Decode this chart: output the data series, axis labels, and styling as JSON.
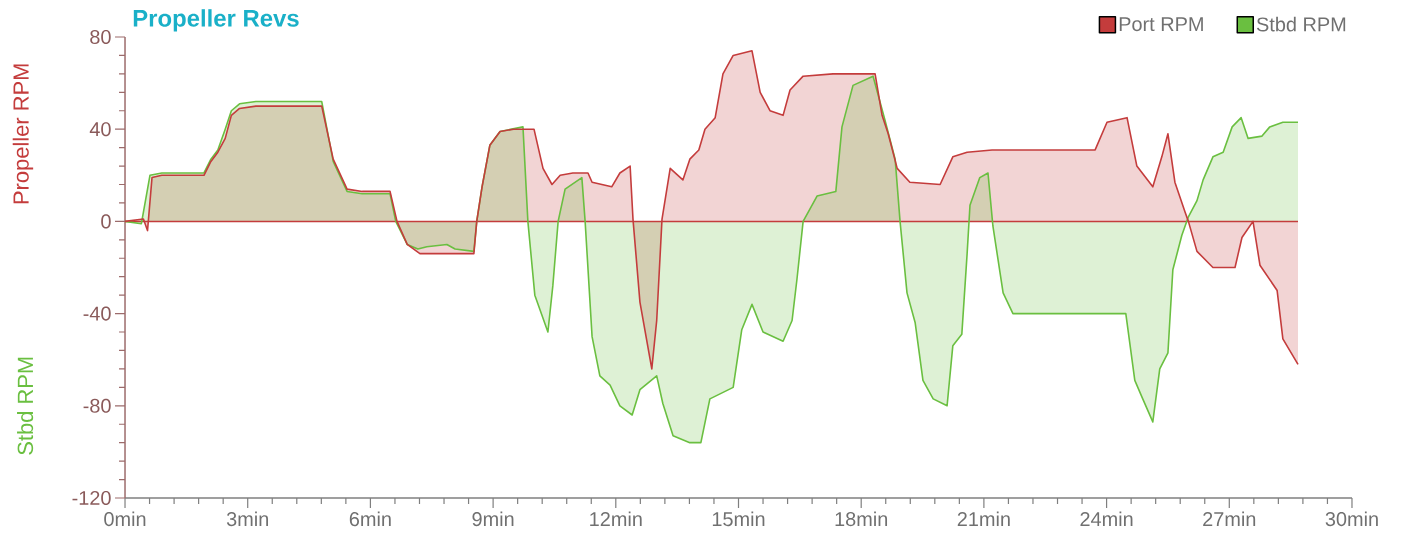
{
  "chart_data": {
    "type": "area",
    "title": "Propeller Revs",
    "ylabel": "Propeller RPM",
    "annotations": [
      "Stbd RPM"
    ],
    "xlim": [
      0,
      30
    ],
    "ylim": [
      -120,
      80
    ],
    "xticks": [
      {
        "value": 0,
        "label": "0min"
      },
      {
        "value": 3,
        "label": "3min"
      },
      {
        "value": 6,
        "label": "6min"
      },
      {
        "value": 9,
        "label": "9min"
      },
      {
        "value": 12,
        "label": "12min"
      },
      {
        "value": 15,
        "label": "15min"
      },
      {
        "value": 18,
        "label": "18min"
      },
      {
        "value": 21,
        "label": "21min"
      },
      {
        "value": 24,
        "label": "24min"
      },
      {
        "value": 27,
        "label": "27min"
      },
      {
        "value": 30,
        "label": "30min"
      }
    ],
    "yticks": [
      -120,
      -80,
      -40,
      0,
      40,
      80
    ],
    "legend": "top right",
    "ref_lines": [
      {
        "axis": "y",
        "value": 0,
        "color": "#c43c3c"
      }
    ],
    "series": [
      {
        "name": "Port RPM",
        "color": "#c43c3c",
        "x": [
          0,
          0.45,
          0.55,
          0.66,
          0.9,
          1.93,
          2.1,
          2.27,
          2.45,
          2.6,
          2.8,
          3.2,
          4.81,
          5.09,
          5.43,
          5.8,
          6.48,
          6.65,
          6.9,
          7.21,
          8.53,
          8.6,
          8.73,
          8.92,
          9.17,
          9.5,
          10.0,
          10.22,
          10.44,
          10.64,
          10.95,
          11.32,
          11.42,
          11.9,
          12.1,
          12.35,
          12.42,
          12.59,
          12.88,
          13.0,
          13.13,
          13.33,
          13.64,
          13.81,
          14.03,
          14.18,
          14.43,
          14.62,
          14.87,
          15.33,
          15.53,
          15.77,
          16.09,
          16.26,
          16.58,
          17.31,
          18.34,
          18.51,
          18.66,
          18.88,
          19.19,
          19.93,
          20.24,
          20.59,
          21.2,
          23.72,
          24.01,
          24.5,
          24.74,
          25.13,
          25.35,
          25.5,
          25.67,
          25.92,
          26.0,
          26.21,
          26.6,
          27.14,
          27.31,
          27.58,
          27.75,
          28.17,
          28.31,
          28.68
        ],
        "values": [
          0,
          1,
          -4,
          19,
          20,
          20,
          26,
          30,
          36,
          46,
          49,
          50,
          50,
          27,
          14,
          13,
          13,
          0,
          -10,
          -14,
          -14,
          0,
          15,
          33,
          39,
          40,
          40,
          23,
          16,
          20,
          21,
          21,
          17,
          15,
          21,
          24,
          1,
          -35,
          -64,
          -43,
          1,
          23,
          18,
          27,
          31,
          40,
          45,
          64,
          72,
          74,
          56,
          48,
          46,
          57,
          63,
          64,
          64,
          46,
          38,
          23,
          17,
          16,
          28,
          30,
          31,
          31,
          43,
          45,
          24,
          15,
          28,
          38,
          17,
          4,
          0,
          -13,
          -20,
          -20,
          -7,
          0,
          -19,
          -30,
          -51,
          -62
        ]
      },
      {
        "name": "Stbd RPM",
        "color": "#6abf40",
        "x": [
          0,
          0.4,
          0.61,
          0.9,
          1.93,
          2.1,
          2.27,
          2.45,
          2.6,
          2.8,
          3.2,
          4.81,
          5.09,
          5.43,
          5.8,
          6.48,
          6.62,
          6.9,
          7.16,
          7.38,
          7.87,
          8.07,
          8.53,
          8.6,
          8.73,
          8.92,
          9.17,
          9.73,
          9.85,
          10.02,
          10.34,
          10.46,
          10.59,
          10.76,
          11.17,
          11.25,
          11.42,
          11.61,
          11.86,
          12.1,
          12.4,
          12.59,
          13.0,
          13.15,
          13.4,
          13.81,
          14.08,
          14.3,
          14.87,
          15.08,
          15.33,
          15.6,
          16.09,
          16.31,
          16.43,
          16.58,
          16.92,
          17.38,
          17.53,
          17.8,
          18.29,
          18.58,
          18.83,
          18.95,
          19.12,
          19.32,
          19.51,
          19.76,
          20.1,
          20.24,
          20.46,
          20.59,
          20.66,
          20.9,
          21.1,
          21.22,
          21.47,
          21.71,
          22.2,
          24.47,
          24.69,
          24.86,
          25.13,
          25.3,
          25.5,
          25.62,
          25.84,
          26.0,
          26.21,
          26.36,
          26.6,
          26.85,
          27.07,
          27.29,
          27.46,
          27.8,
          27.99,
          28.31,
          28.68
        ],
        "values": [
          0,
          -1,
          20,
          21,
          21,
          27,
          31,
          40,
          48,
          51,
          52,
          52,
          26,
          13,
          12,
          12,
          0,
          -10,
          -12,
          -11,
          -10,
          -12,
          -13,
          0,
          15,
          33,
          39,
          41,
          0,
          -32,
          -48,
          -28,
          0,
          14,
          19,
          0,
          -50,
          -67,
          -71,
          -80,
          -84,
          -73,
          -67,
          -79,
          -93,
          -96,
          -96,
          -77,
          -72,
          -47,
          -36,
          -48,
          -52,
          -43,
          -25,
          0,
          11,
          13,
          41,
          59,
          63,
          44,
          27,
          0,
          -31,
          -44,
          -69,
          -77,
          -80,
          -54,
          -49,
          -14,
          7,
          19,
          21,
          -2,
          -31,
          -40,
          -40,
          -40,
          -69,
          -76,
          -87,
          -64,
          -57,
          -21,
          -6,
          2,
          9,
          18,
          28,
          30,
          41,
          45,
          36,
          37,
          41,
          43,
          43
        ]
      }
    ]
  }
}
